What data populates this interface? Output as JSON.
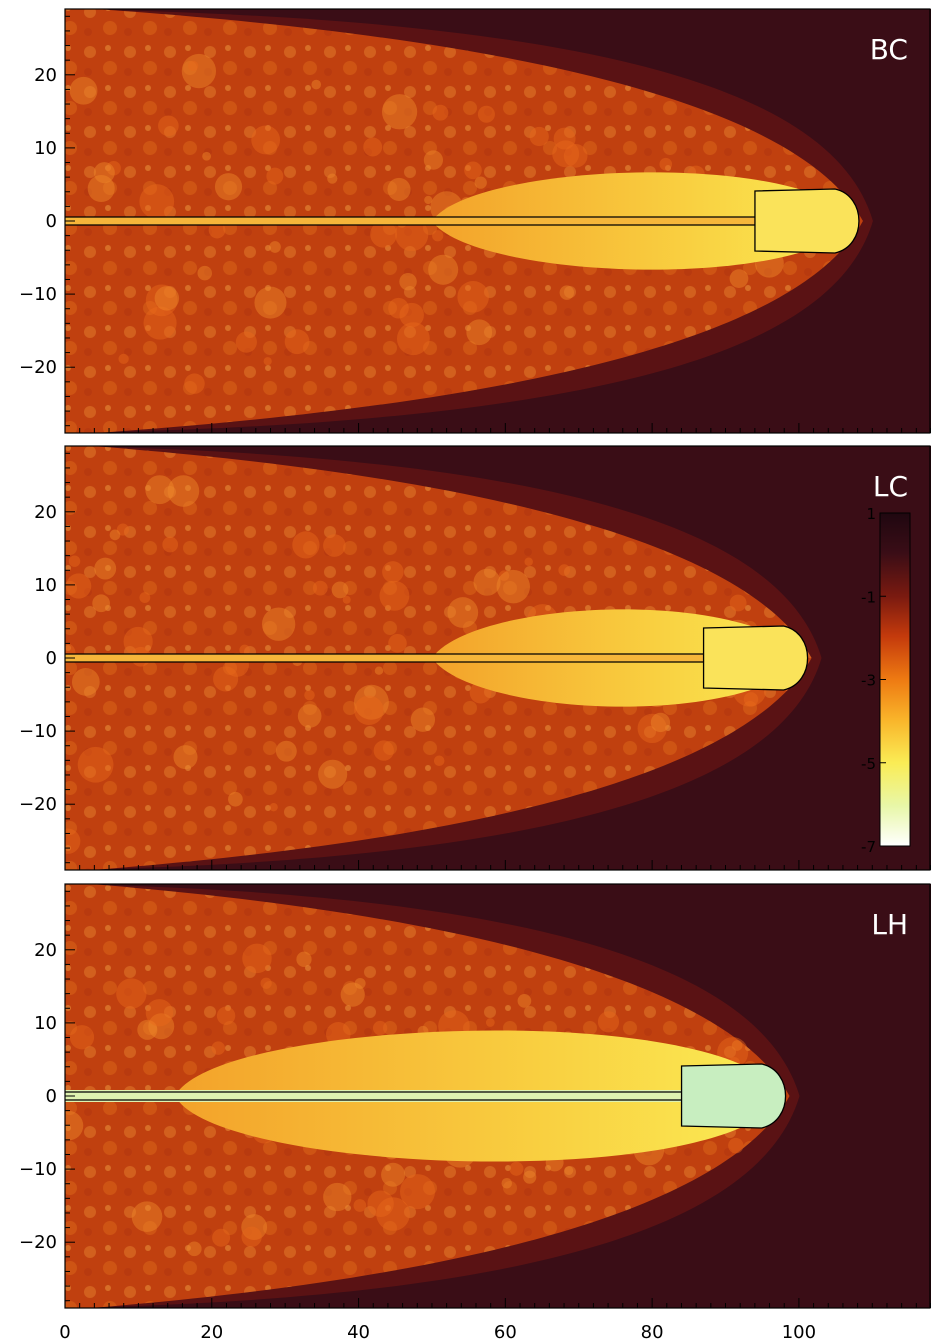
{
  "chart_data": {
    "type": "heatmap",
    "xlim": [
      0,
      118
    ],
    "ylim": [
      -29,
      29
    ],
    "x_ticks": [
      "0",
      "20",
      "40",
      "60",
      "80",
      "100"
    ],
    "y_ticks": [
      "20",
      "10",
      "0",
      "−10",
      "−20"
    ],
    "panels": [
      {
        "label": "BC",
        "jet_head_x": 109,
        "cocoon_half_width": 29
      },
      {
        "label": "LC",
        "jet_head_x": 102,
        "cocoon_half_width": 29
      },
      {
        "label": "LH",
        "jet_head_x": 99,
        "cocoon_half_width": 29
      }
    ],
    "colorbar": {
      "range": [
        1,
        -7
      ],
      "ticks": [
        "1",
        "-1",
        "-3",
        "-5",
        "-7"
      ],
      "colors": [
        "#1f0710",
        "#3a0d16",
        "#7a1a10",
        "#c43a0c",
        "#ee7a12",
        "#f9b42a",
        "#faec55",
        "#e8f7a8",
        "#ffffff"
      ]
    }
  }
}
